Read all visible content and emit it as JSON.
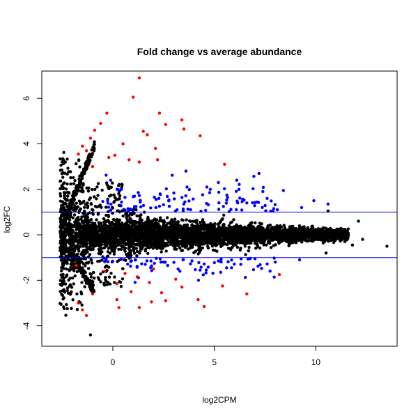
{
  "chart_data": {
    "type": "scatter",
    "title": "Fold change vs average abundance",
    "xlabel": "log2CPM",
    "ylabel": "log2FC",
    "xlim": [
      -3.5,
      14
    ],
    "ylim": [
      -4.9,
      7.2
    ],
    "x_ticks": [
      0,
      5,
      10
    ],
    "y_ticks": [
      -4,
      -2,
      0,
      2,
      4,
      6
    ],
    "grid": false,
    "legend": "none",
    "threshold_lines": [
      1,
      -1
    ],
    "colors": {
      "not_significant": "#000000",
      "significant_moderate": "#0000ff",
      "significant_large": "#ff0000",
      "threshold": "#0000ff"
    },
    "highlight_points": [
      {
        "group": "red",
        "x": 1.3,
        "y": 6.9
      },
      {
        "group": "red",
        "x": 1.0,
        "y": 6.05
      },
      {
        "group": "red",
        "x": -0.3,
        "y": 5.35
      },
      {
        "group": "red",
        "x": 2.3,
        "y": 5.35
      },
      {
        "group": "red",
        "x": 3.4,
        "y": 5.05
      },
      {
        "group": "red",
        "x": 2.6,
        "y": 4.85
      },
      {
        "group": "red",
        "x": 3.5,
        "y": 4.65
      },
      {
        "group": "red",
        "x": -0.6,
        "y": 4.9
      },
      {
        "group": "red",
        "x": -0.9,
        "y": 4.6
      },
      {
        "group": "red",
        "x": 1.5,
        "y": 4.55
      },
      {
        "group": "red",
        "x": 1.7,
        "y": 4.4
      },
      {
        "group": "red",
        "x": 4.3,
        "y": 4.35
      },
      {
        "group": "red",
        "x": -1.1,
        "y": 4.25
      },
      {
        "group": "red",
        "x": 0.5,
        "y": 4.0
      },
      {
        "group": "red",
        "x": 2.1,
        "y": 3.8
      },
      {
        "group": "red",
        "x": -1.5,
        "y": 3.9
      },
      {
        "group": "red",
        "x": -1.3,
        "y": 3.7
      },
      {
        "group": "red",
        "x": -1.7,
        "y": 3.55
      },
      {
        "group": "red",
        "x": 0.1,
        "y": 3.5
      },
      {
        "group": "red",
        "x": 0.8,
        "y": 3.3
      },
      {
        "group": "red",
        "x": -0.2,
        "y": 3.4
      },
      {
        "group": "red",
        "x": 1.3,
        "y": 3.2
      },
      {
        "group": "red",
        "x": -1.0,
        "y": 3.0
      },
      {
        "group": "red",
        "x": 5.5,
        "y": 3.1
      },
      {
        "group": "red",
        "x": 2.2,
        "y": 3.3
      },
      {
        "group": "red",
        "x": -1.8,
        "y": -1.35
      },
      {
        "group": "red",
        "x": -0.4,
        "y": -1.6
      },
      {
        "group": "red",
        "x": 0.6,
        "y": -1.7
      },
      {
        "group": "red",
        "x": 1.2,
        "y": -1.85
      },
      {
        "group": "red",
        "x": 2.0,
        "y": -1.5
      },
      {
        "group": "red",
        "x": 3.1,
        "y": -1.95
      },
      {
        "group": "red",
        "x": 8.2,
        "y": -1.75
      },
      {
        "group": "red",
        "x": 0.2,
        "y": -2.15
      },
      {
        "group": "red",
        "x": 1.8,
        "y": -2.1
      },
      {
        "group": "red",
        "x": 3.4,
        "y": -2.3
      },
      {
        "group": "red",
        "x": 5.4,
        "y": -2.25
      },
      {
        "group": "red",
        "x": -1.0,
        "y": -2.6
      },
      {
        "group": "red",
        "x": 0.9,
        "y": -2.5
      },
      {
        "group": "red",
        "x": 2.4,
        "y": -2.55
      },
      {
        "group": "red",
        "x": 6.6,
        "y": -2.6
      },
      {
        "group": "red",
        "x": 0.2,
        "y": -2.85
      },
      {
        "group": "red",
        "x": 1.9,
        "y": -2.95
      },
      {
        "group": "red",
        "x": 2.6,
        "y": -2.9
      },
      {
        "group": "red",
        "x": 4.2,
        "y": -2.85
      },
      {
        "group": "red",
        "x": -1.7,
        "y": -3.0
      },
      {
        "group": "red",
        "x": 0.3,
        "y": -3.2
      },
      {
        "group": "red",
        "x": 1.3,
        "y": -3.2
      },
      {
        "group": "red",
        "x": 4.5,
        "y": -3.15
      },
      {
        "group": "red",
        "x": -1.5,
        "y": -3.3
      },
      {
        "group": "red",
        "x": -1.3,
        "y": -3.55
      },
      {
        "group": "black",
        "x": -1.1,
        "y": -4.4
      },
      {
        "group": "black",
        "x": 13.5,
        "y": -0.5
      },
      {
        "group": "black",
        "x": 10.6,
        "y": 1.05
      },
      {
        "group": "black",
        "x": 12.1,
        "y": 0.6
      },
      {
        "group": "black",
        "x": 11.4,
        "y": 0.2
      },
      {
        "group": "black",
        "x": 12.3,
        "y": -0.2
      },
      {
        "group": "black",
        "x": 11.8,
        "y": -0.45
      },
      {
        "group": "black",
        "x": 10.5,
        "y": -0.8
      },
      {
        "group": "blue",
        "x": 10.6,
        "y": 1.35
      },
      {
        "group": "blue",
        "x": 9.9,
        "y": 1.5
      },
      {
        "group": "blue",
        "x": 8.4,
        "y": 1.95
      },
      {
        "group": "blue",
        "x": 7.2,
        "y": 2.7
      },
      {
        "group": "blue",
        "x": 6.1,
        "y": 2.4
      },
      {
        "group": "blue",
        "x": 5.2,
        "y": 2.3
      },
      {
        "group": "blue",
        "x": 3.6,
        "y": 2.8
      },
      {
        "group": "blue",
        "x": 4.8,
        "y": 2.0
      },
      {
        "group": "blue",
        "x": 7.6,
        "y": 1.6
      },
      {
        "group": "blue",
        "x": 6.6,
        "y": 1.4
      },
      {
        "group": "blue",
        "x": 9.3,
        "y": 1.2
      },
      {
        "group": "blue",
        "x": 8.1,
        "y": 1.1
      },
      {
        "group": "blue",
        "x": 7.0,
        "y": -1.05
      },
      {
        "group": "blue",
        "x": 8.0,
        "y": -1.2
      },
      {
        "group": "blue",
        "x": 9.2,
        "y": -1.1
      },
      {
        "group": "blue",
        "x": 6.3,
        "y": -1.3
      },
      {
        "group": "blue",
        "x": 5.6,
        "y": -1.45
      },
      {
        "group": "blue",
        "x": 4.6,
        "y": -1.55
      },
      {
        "group": "blue",
        "x": 3.3,
        "y": -1.6
      },
      {
        "group": "blue",
        "x": 2.7,
        "y": -1.35
      },
      {
        "group": "blue",
        "x": 1.6,
        "y": -1.3
      },
      {
        "group": "blue",
        "x": 5.2,
        "y": -1.15
      }
    ]
  }
}
